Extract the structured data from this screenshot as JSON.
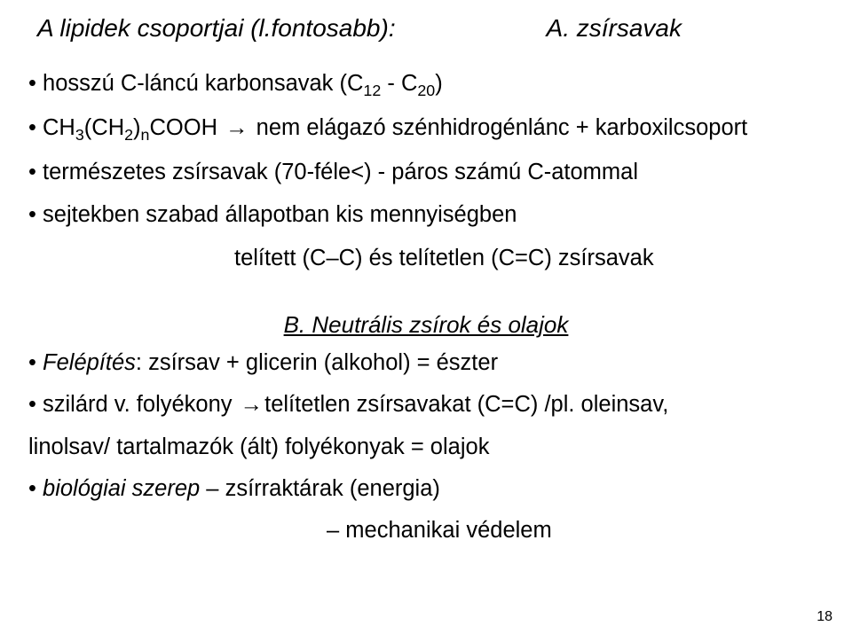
{
  "title": {
    "left": "A lipidek csoportjai (l.fontosabb):",
    "right": "A. zsírsavak"
  },
  "sectionA": {
    "b1_a": "• hosszú C-láncú karbonsavak (C",
    "b1_s1": "12",
    "b1_mid": " - C",
    "b1_s2": "20",
    "b1_end": ")",
    "b2_a": "• CH",
    "b2_s1": "3",
    "b2_b": "(CH",
    "b2_s2": "2",
    "b2_c": ")",
    "b2_s3": "n",
    "b2_d": "COOH ",
    "b2_arrow": "→",
    "b2_e": " nem elágazó szénhidrogénlánc + karboxilcsoport",
    "b3": "• természetes zsírsavak (70-féle<) - páros számú C-atommal",
    "b4": "• sejtekben szabad állapotban kis mennyiségben",
    "b5": "telített (C–C) és telítetlen (C=C) zsírsavak"
  },
  "sectionB": {
    "heading": "B. Neutrális zsírok és olajok",
    "l1_a": "• ",
    "l1_i": "Felépítés",
    "l1_b": ": zsírsav + glicerin (alkohol) = észter",
    "l2_a": "• szilárd v. folyékony ",
    "l2_arrow": "→",
    "l2_b": "telítetlen zsírsavakat (C=C) /pl. oleinsav,",
    "l3": "linolsav/ tartalmazók (ált) folyékonyak = olajok",
    "l4_a": "• ",
    "l4_i": "biológiai szerep",
    "l4_b": " – zsírraktárak (energia)",
    "l5": "– mechanikai védelem"
  },
  "pageNumber": "18"
}
